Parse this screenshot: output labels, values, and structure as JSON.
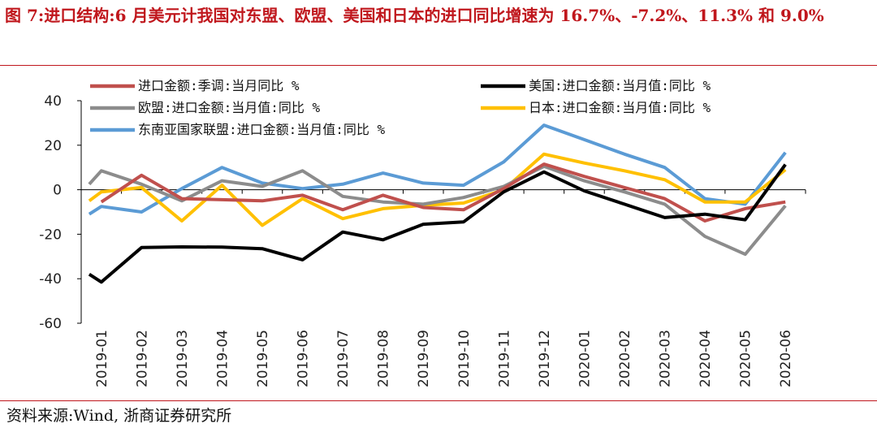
{
  "title": "图 7:进口结构:6 月美元计我国对东盟、欧盟、美国和日本的进口同比增速为 16.7%、-7.2%、11.3% 和 9.0%",
  "source": "资料来源:Wind, 浙商证券研究所",
  "chart_data": {
    "type": "line",
    "title": "图 7:进口结构:6 月美元计我国对东盟、欧盟、美国和日本的进口同比增速为 16.7%、-7.2%、11.3% 和 9.0%",
    "xlabel": "",
    "ylabel": "",
    "ylim": [
      -60,
      40
    ],
    "yticks": [
      -60,
      -40,
      -20,
      0,
      20,
      40
    ],
    "grid": false,
    "legend_position": "top",
    "categories": [
      "2019-01",
      "2019-02",
      "2019-03",
      "2019-04",
      "2019-05",
      "2019-06",
      "2019-07",
      "2019-08",
      "2019-09",
      "2019-10",
      "2019-11",
      "2019-12",
      "2020-01",
      "2020-02",
      "2020-03",
      "2020-04",
      "2020-05",
      "2020-06"
    ],
    "series": [
      {
        "name": "进口金额:季调:当月同比 %",
        "color": "#c0504d",
        "x": [
          0,
          1,
          2,
          3,
          4,
          5,
          6,
          7,
          8,
          9,
          10,
          11,
          12,
          13,
          14,
          15,
          16,
          17
        ],
        "values": [
          -5.5,
          6.5,
          -4.0,
          -4.5,
          -5.0,
          -2.5,
          -9.0,
          -2.5,
          -8.0,
          -9.0,
          0.5,
          11.5,
          6.0,
          1.0,
          -4.0,
          -14.0,
          -8.5,
          -5.5
        ]
      },
      {
        "name": "美国:进口金额:当月值:同比 %",
        "color": "#000000",
        "x": [
          -0.3,
          0,
          1,
          2,
          3,
          4,
          5,
          6,
          7,
          8,
          9,
          10,
          11,
          12,
          13,
          14,
          15,
          16,
          17
        ],
        "values": [
          -38,
          -41.5,
          -26.0,
          -25.7,
          -25.8,
          -26.5,
          -31.5,
          -19.0,
          -22.5,
          -15.5,
          -14.5,
          -1.0,
          8.0,
          -0.5,
          -6.5,
          -12.5,
          -11.0,
          -13.5,
          11.3
        ]
      },
      {
        "name": "欧盟:进口金额:当月值:同比 %",
        "color": "#8c8c8c",
        "x": [
          -0.3,
          0,
          1,
          2,
          3,
          4,
          5,
          6,
          7,
          8,
          9,
          10,
          11,
          12,
          13,
          14,
          15,
          16,
          17
        ],
        "values": [
          2.5,
          8.5,
          2.5,
          -5.0,
          4.0,
          1.5,
          8.5,
          -3.0,
          -5.5,
          -6.5,
          -3.5,
          1.5,
          10.5,
          4.0,
          -1.0,
          -6.5,
          -21.0,
          -29.0,
          -7.2
        ]
      },
      {
        "name": "日本:进口金额:当月值:同比 %",
        "color": "#ffc000",
        "x": [
          -0.3,
          0,
          1,
          2,
          3,
          4,
          5,
          6,
          7,
          8,
          9,
          10,
          11,
          12,
          13,
          14,
          15,
          16,
          17
        ],
        "values": [
          -5.0,
          -1.0,
          1.0,
          -14.0,
          2.0,
          -16.0,
          -4.0,
          -13.0,
          -8.5,
          -7.0,
          -6.0,
          0.0,
          16.0,
          12.0,
          8.5,
          4.5,
          -5.5,
          -5.5,
          9.0
        ]
      },
      {
        "name": "东南亚国家联盟:进口金额:当月值:同比 %",
        "color": "#5b9bd5",
        "x": [
          -0.3,
          0,
          1,
          2,
          3,
          4,
          5,
          6,
          7,
          8,
          9,
          10,
          11,
          12,
          13,
          14,
          15,
          16,
          17
        ],
        "values": [
          -11.0,
          -7.5,
          -10.0,
          0.5,
          10.0,
          3.0,
          0.5,
          2.5,
          7.5,
          3.0,
          2.0,
          12.5,
          29.0,
          22.5,
          16.0,
          10.0,
          -4.0,
          -6.5,
          16.7
        ]
      }
    ]
  }
}
